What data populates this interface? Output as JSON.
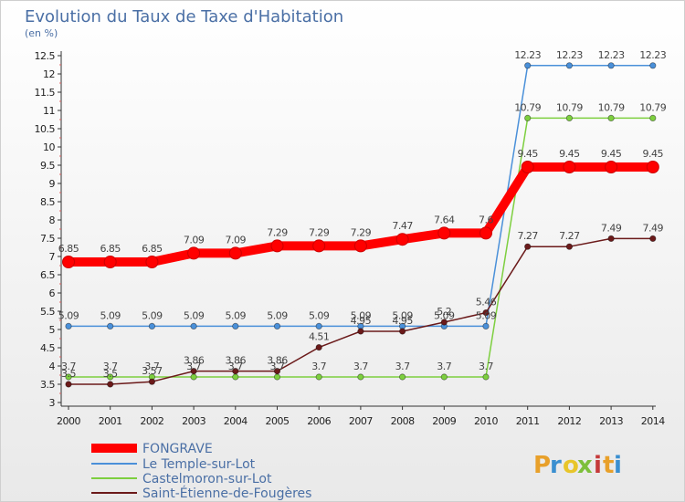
{
  "chart_data": {
    "type": "line",
    "title": "Evolution du Taux de Taxe d'Habitation",
    "subtitle": "(en %)",
    "x": [
      "2000",
      "2001",
      "2002",
      "2003",
      "2004",
      "2005",
      "2006",
      "2007",
      "2008",
      "2009",
      "2010",
      "2011",
      "2012",
      "2013",
      "2014"
    ],
    "ylim": [
      3,
      12.5
    ],
    "yticks": [
      "3",
      "3.5",
      "4",
      "4.5",
      "5",
      "5.5",
      "6",
      "6.5",
      "7",
      "7.5",
      "8",
      "8.5",
      "9",
      "9.5",
      "10",
      "10.5",
      "11",
      "11.5",
      "12",
      "12.5"
    ],
    "grid": false,
    "legend_position": "bottom-left",
    "series": [
      {
        "name": "FONGRAVE",
        "color": "#ff0000",
        "values": [
          6.85,
          6.85,
          6.85,
          7.09,
          7.09,
          7.29,
          7.29,
          7.29,
          7.47,
          7.64,
          7.64,
          9.45,
          9.45,
          9.45,
          9.45
        ],
        "labels": [
          "6.85",
          "6.85",
          "6.85",
          "7.09",
          "7.09",
          "7.29",
          "7.29",
          "7.29",
          "7.47",
          "7.64",
          "7.6",
          "9.45",
          "9.45",
          "9.45",
          "9.45"
        ]
      },
      {
        "name": "Le Temple-sur-Lot",
        "color": "#4a90d9",
        "values": [
          5.09,
          5.09,
          5.09,
          5.09,
          5.09,
          5.09,
          5.09,
          5.09,
          5.09,
          5.09,
          5.09,
          12.23,
          12.23,
          12.23,
          12.23
        ],
        "labels": [
          "5.09",
          "5.09",
          "5.09",
          "5.09",
          "5.09",
          "5.09",
          "5.09",
          "5.09",
          "5.09",
          "5.09",
          "5.09",
          "12.23",
          "12.23",
          "12.23",
          "12.23"
        ]
      },
      {
        "name": "Castelmoron-sur-Lot",
        "color": "#7dcf3f",
        "values": [
          3.7,
          3.7,
          3.7,
          3.7,
          3.7,
          3.7,
          3.7,
          3.7,
          3.7,
          3.7,
          3.7,
          10.79,
          10.79,
          10.79,
          10.79
        ],
        "labels": [
          "3.7",
          "3.7",
          "3.7",
          "3.7",
          "3.7",
          "3.7",
          "3.7",
          "3.7",
          "3.7",
          "3.7",
          "3.7",
          "10.79",
          "10.79",
          "10.79",
          "10.79"
        ]
      },
      {
        "name": "Saint-Étienne-de-Fougères",
        "color": "#6b1a1a",
        "values": [
          3.5,
          3.5,
          3.57,
          3.86,
          3.86,
          3.86,
          4.51,
          4.95,
          4.95,
          5.2,
          5.46,
          7.27,
          7.27,
          7.49,
          7.49
        ],
        "labels": [
          "3.5",
          "3.5",
          "3.57",
          "3.86",
          "3.86",
          "3.86",
          "4.51",
          "4.95",
          "4.95",
          "5.2",
          "5.46",
          "7.27",
          "7.27",
          "7.49",
          "7.49"
        ]
      }
    ]
  },
  "logo": {
    "text": "Proxiti",
    "colors": [
      "#e8a02a",
      "#3a8fd0",
      "#e8c52a",
      "#7dbf3a",
      "#c53a3a"
    ]
  }
}
